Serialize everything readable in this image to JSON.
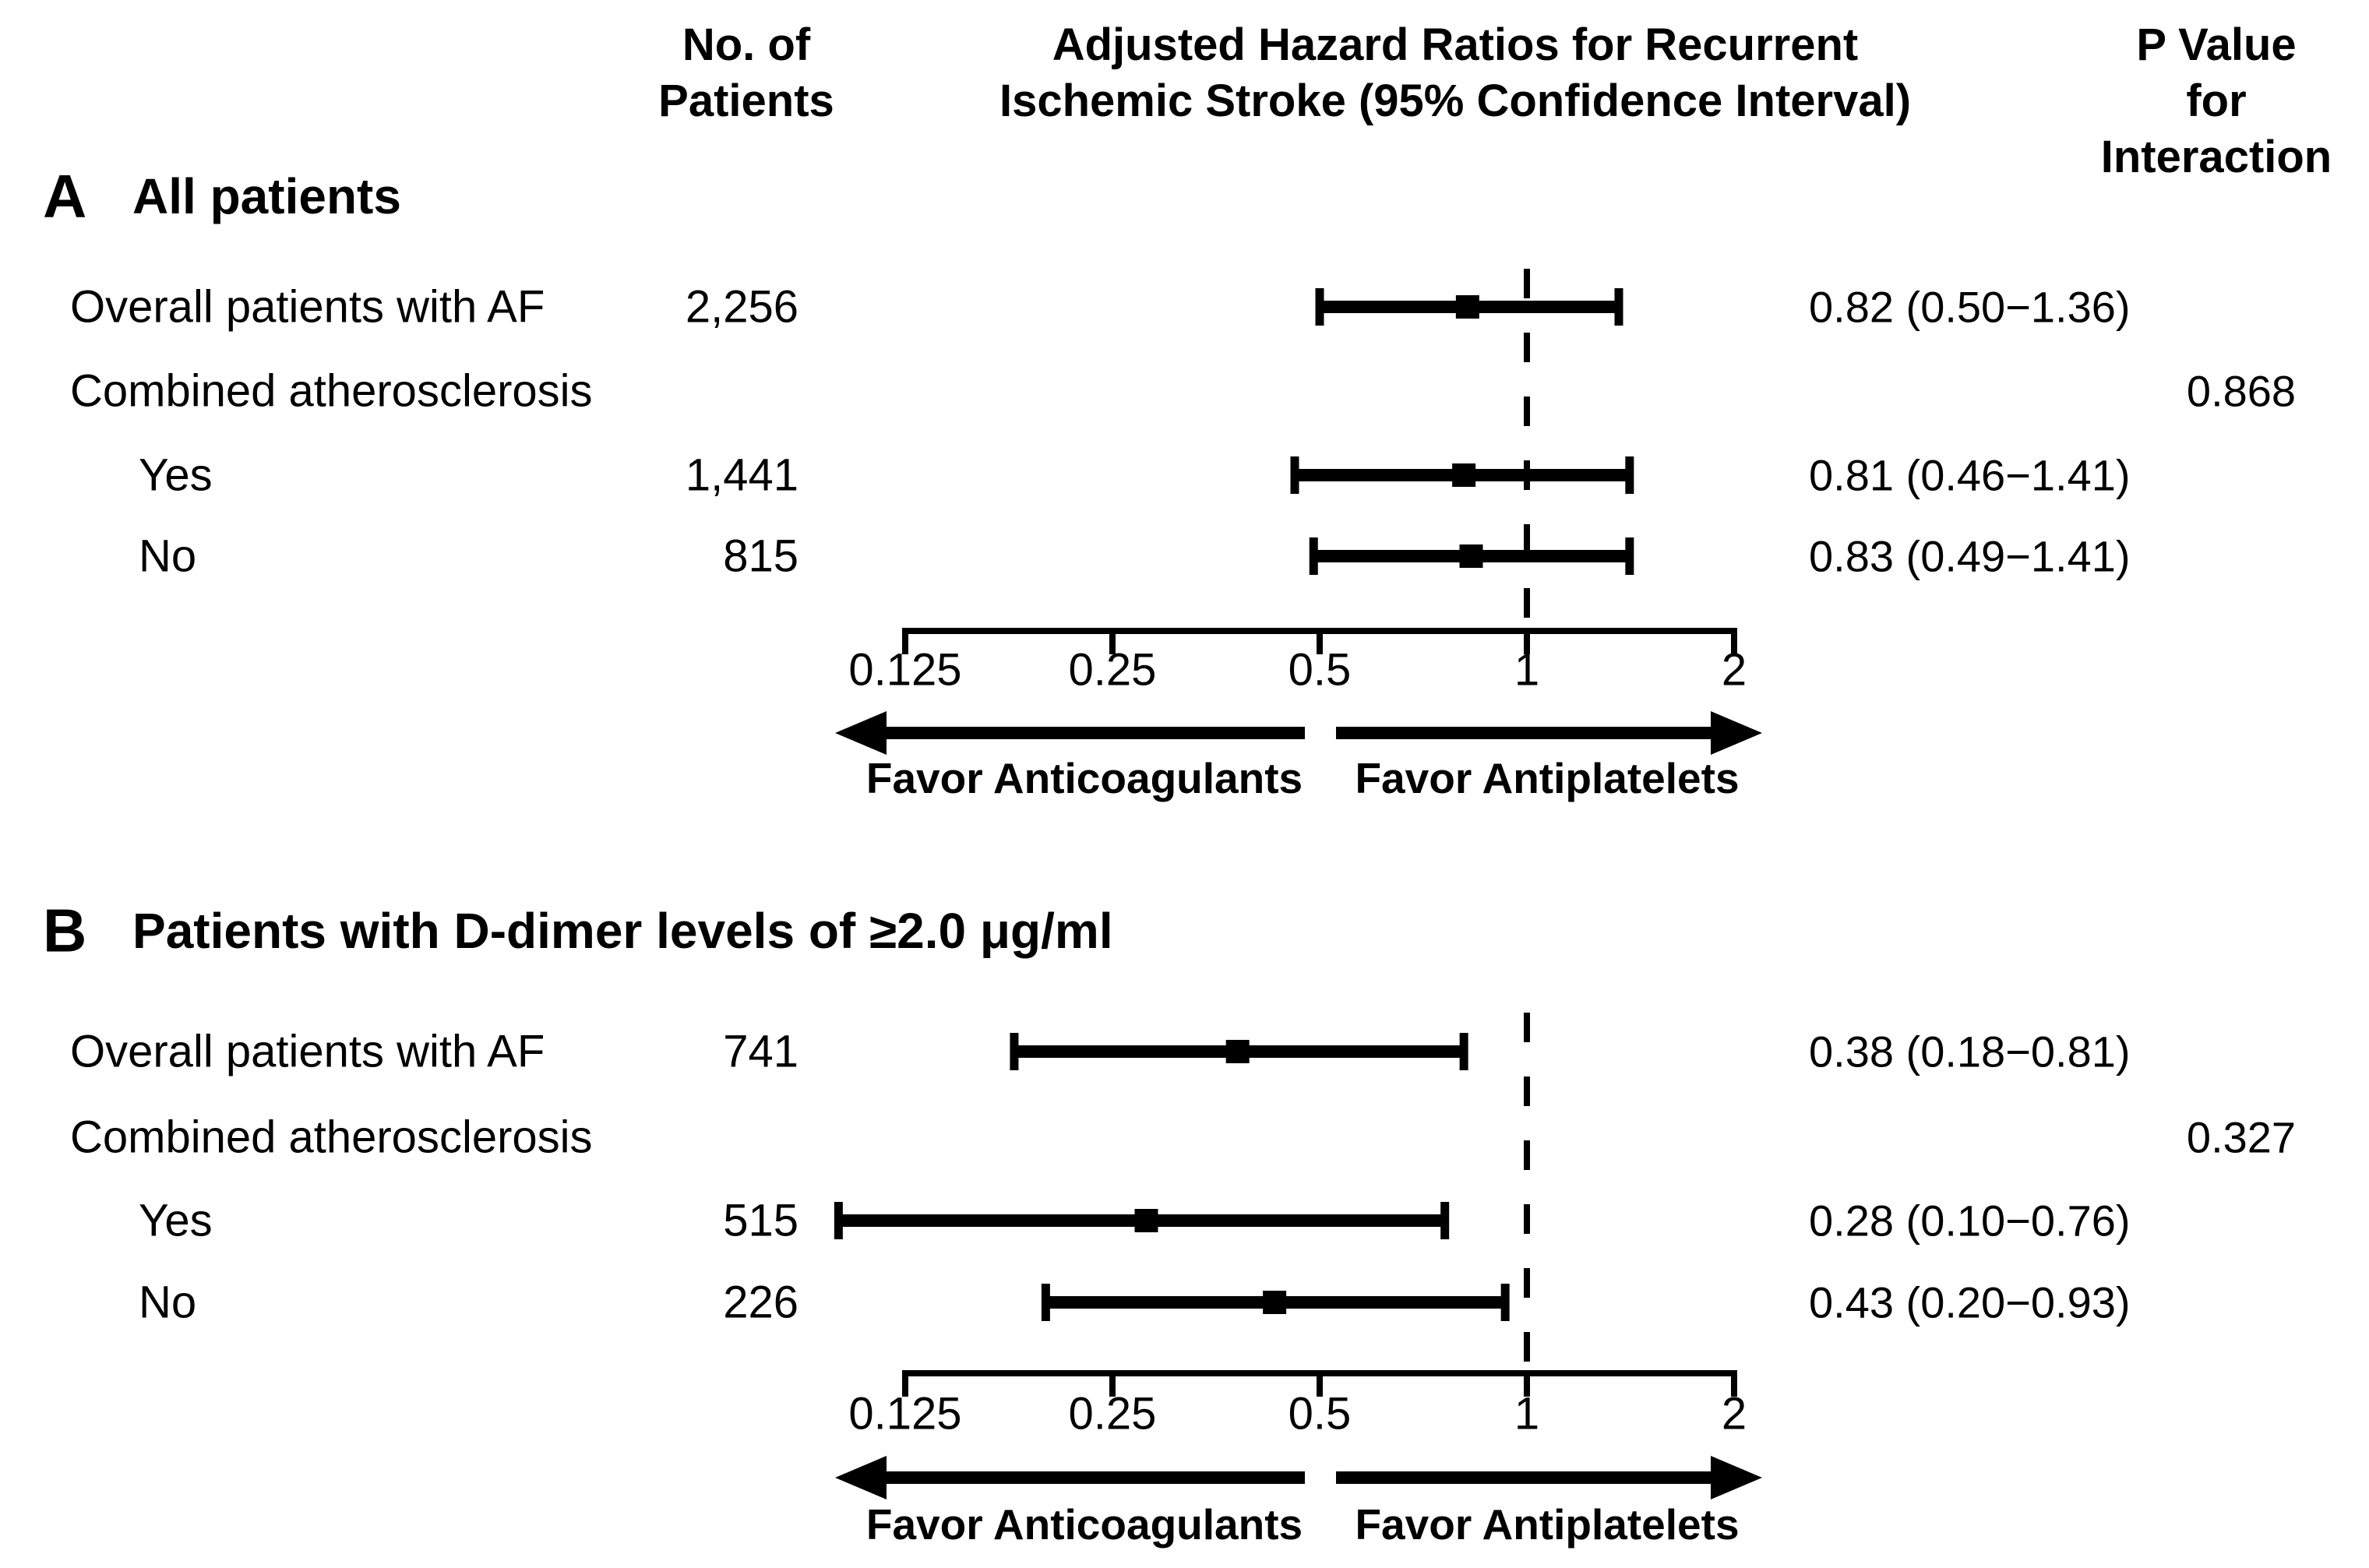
{
  "figure": {
    "background": "#ffffff",
    "ink": "#000000"
  },
  "header": {
    "col_patients": [
      "No. of",
      "Patients"
    ],
    "col_hazard": [
      "Adjusted Hazard Ratios for Recurrent",
      "Ischemic Stroke (95% Confidence Interval)"
    ],
    "col_p": [
      "P Value for",
      "Interaction"
    ]
  },
  "axis": {
    "scale": "log2",
    "min": 0.125,
    "max": 2,
    "reference_line": 1,
    "ticks": [
      "0.125",
      "0.25",
      "0.5",
      "1",
      "2"
    ],
    "tick_values": [
      0.125,
      0.25,
      0.5,
      1,
      2
    ],
    "arrow_left_label": "Favor Anticoagulants",
    "arrow_right_label": "Favor Antiplatelets"
  },
  "chart_data": {
    "type": "forest",
    "x_scale": "log2",
    "x_ticks": [
      0.125,
      0.25,
      0.5,
      1,
      2
    ],
    "reference": 1,
    "panels": [
      {
        "panel_letter": "A",
        "title": "All patients",
        "rows": [
          {
            "label": "Overall patients with AF",
            "indent": false,
            "n": "2,256",
            "hr": 0.82,
            "lo": 0.5,
            "hi": 1.36,
            "ci_text": "0.82 (0.50−1.36)",
            "p_interaction": ""
          },
          {
            "label": "Combined atherosclerosis",
            "indent": false,
            "n": "",
            "hr": null,
            "lo": null,
            "hi": null,
            "ci_text": "",
            "p_interaction": "0.868"
          },
          {
            "label": "Yes",
            "indent": true,
            "n": "1,441",
            "hr": 0.81,
            "lo": 0.46,
            "hi": 1.41,
            "ci_text": "0.81 (0.46−1.41)",
            "p_interaction": ""
          },
          {
            "label": "No",
            "indent": true,
            "n": "815",
            "hr": 0.83,
            "lo": 0.49,
            "hi": 1.41,
            "ci_text": "0.83 (0.49−1.41)",
            "p_interaction": ""
          }
        ]
      },
      {
        "panel_letter": "B",
        "title": "Patients with D-dimer levels of ≥2.0 μg/ml",
        "rows": [
          {
            "label": "Overall patients with AF",
            "indent": false,
            "n": "741",
            "hr": 0.38,
            "lo": 0.18,
            "hi": 0.81,
            "ci_text": "0.38 (0.18−0.81)",
            "p_interaction": ""
          },
          {
            "label": "Combined atherosclerosis",
            "indent": false,
            "n": "",
            "hr": null,
            "lo": null,
            "hi": null,
            "ci_text": "",
            "p_interaction": "0.327"
          },
          {
            "label": "Yes",
            "indent": true,
            "n": "515",
            "hr": 0.28,
            "lo": 0.1,
            "hi": 0.76,
            "ci_text": "0.28 (0.10−0.76)",
            "p_interaction": ""
          },
          {
            "label": "No",
            "indent": true,
            "n": "226",
            "hr": 0.43,
            "lo": 0.2,
            "hi": 0.93,
            "ci_text": "0.43 (0.20−0.93)",
            "p_interaction": ""
          }
        ]
      }
    ]
  }
}
